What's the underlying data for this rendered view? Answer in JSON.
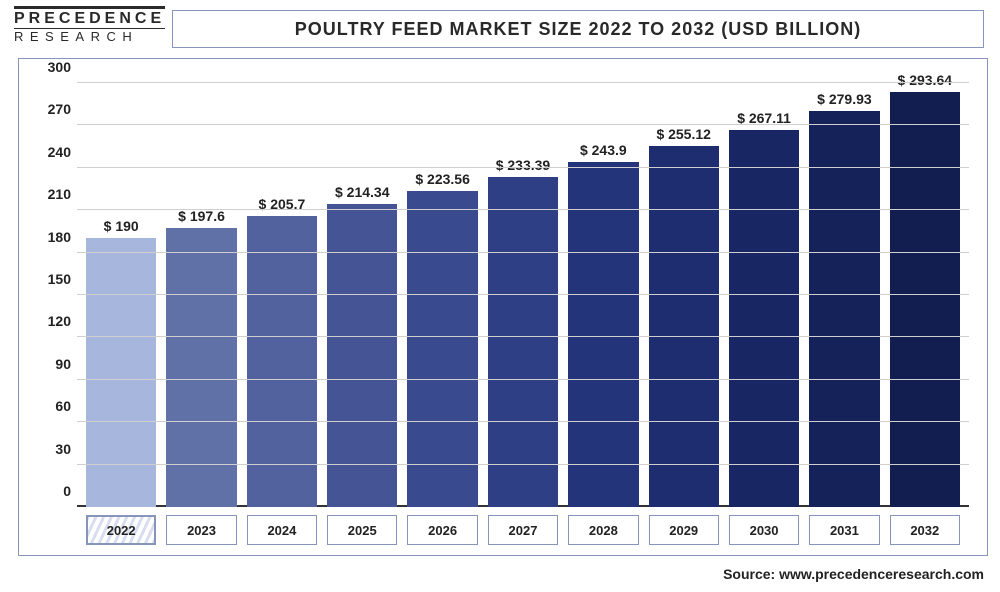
{
  "logo": {
    "top": "PRECEDENCE",
    "bottom": "RESEARCH"
  },
  "title": "POULTRY FEED MARKET SIZE 2022 TO 2032 (USD BILLION)",
  "source": "Source: www.precedenceresearch.com",
  "chart": {
    "type": "bar",
    "background_color": "#ffffff",
    "grid_color": "#cfcfcf",
    "frame_color": "#8895bb",
    "bar_width": 0.78,
    "title_fontsize": 18,
    "label_fontsize": 14,
    "value_prefix": "$ ",
    "ylim": [
      0,
      300
    ],
    "yticks": [
      0,
      30,
      60,
      90,
      120,
      150,
      180,
      210,
      240,
      270,
      300
    ],
    "categories": [
      "2022",
      "2023",
      "2024",
      "2025",
      "2026",
      "2027",
      "2028",
      "2029",
      "2030",
      "2031",
      "2032"
    ],
    "values": [
      190,
      197.6,
      205.7,
      214.34,
      223.56,
      233.39,
      243.9,
      255.12,
      267.11,
      279.93,
      293.64
    ],
    "value_labels": [
      "190",
      "197.6",
      "205.7",
      "214.34",
      "223.56",
      "233.39",
      "243.9",
      "255.12",
      "267.11",
      "279.93",
      "293.64"
    ],
    "bar_colors": [
      "#a7b6dc",
      "#6071a7",
      "#52629e",
      "#455495",
      "#3a4a8e",
      "#2f3f85",
      "#24347a",
      "#1d2d6f",
      "#182763",
      "#152259",
      "#121e50"
    ],
    "first_category_highlight": true
  }
}
